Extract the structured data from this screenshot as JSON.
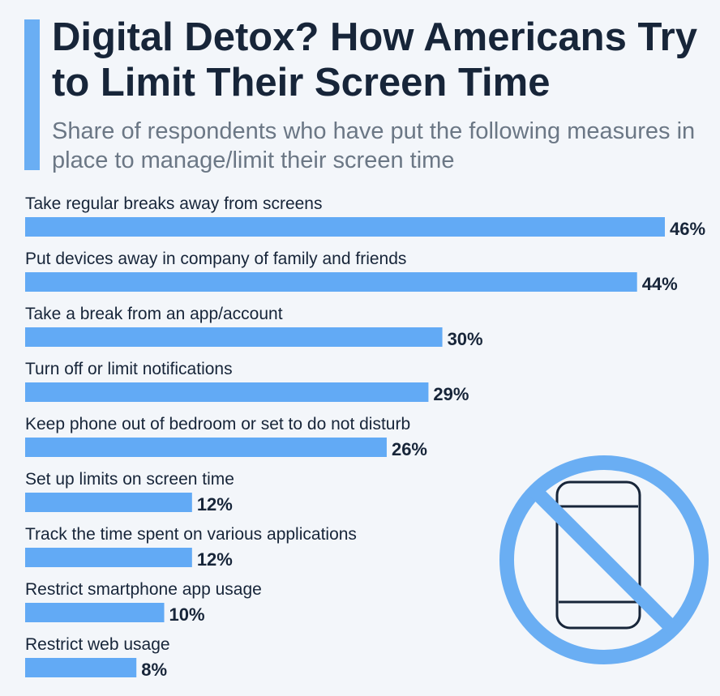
{
  "header": {
    "title": "Digital Detox? How Americans Try to Limit Their Screen Time",
    "subtitle": "Share of respondents who have put the following measures in place to manage/limit their screen time"
  },
  "colors": {
    "bar": "#62aaf5",
    "accent": "#6aaef3",
    "text": "#172539",
    "subtitle": "#6b7785",
    "icon": "#6aaef3",
    "icon_outline": "#172539"
  },
  "icon": {
    "name": "no-phone-icon"
  },
  "chart_data": {
    "type": "bar",
    "orientation": "horizontal",
    "categories": [
      "Take regular breaks away from screens",
      "Put devices away in company of family and friends",
      "Take a break from an app/account",
      "Turn off or limit notifications",
      "Keep phone out of bedroom or set to do not disturb",
      "Set up limits on screen time",
      "Track the time spent on various applications",
      "Restrict smartphone app usage",
      "Restrict web usage"
    ],
    "values": [
      46,
      44,
      30,
      29,
      26,
      12,
      12,
      10,
      8
    ],
    "value_labels": [
      "46%",
      "44%",
      "30%",
      "29%",
      "26%",
      "12%",
      "12%",
      "10%",
      "8%"
    ],
    "unit": "%",
    "xlim": [
      0,
      46
    ],
    "grid": false,
    "legend": "none"
  }
}
